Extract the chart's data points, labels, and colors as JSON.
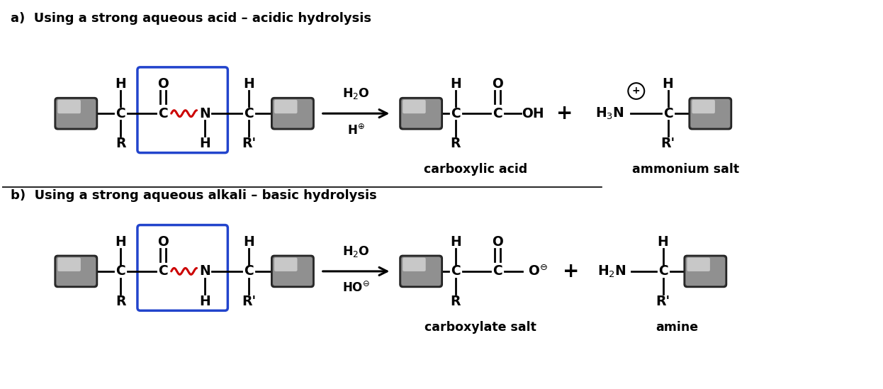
{
  "bg_color": "#ffffff",
  "title_a": "a)  Using a strong aqueous acid – acidic hydrolysis",
  "title_b": "b)  Using a strong aqueous alkali – basic hydrolysis",
  "label_carboxylic": "carboxylic acid",
  "label_ammonium": "ammonium salt",
  "label_carboxylate": "carboxylate salt",
  "label_amine": "amine",
  "box_color_a": "#2244cc",
  "box_color_b": "#2244cc",
  "red_color": "#cc0000",
  "bond_color": "#000000",
  "text_color": "#000000"
}
